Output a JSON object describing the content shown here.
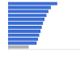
{
  "chart_data": {
    "type": "bar",
    "orientation": "horizontal",
    "categories": [
      null,
      null,
      null,
      null,
      null,
      null,
      null,
      null,
      null,
      null,
      null,
      null
    ],
    "values": [
      10.0,
      8.7,
      8.2,
      7.8,
      7.4,
      7.1,
      6.85,
      6.6,
      6.35,
      6.1,
      5.8,
      4.2
    ],
    "colors": [
      "#3d6fd4",
      "#3d6fd4",
      "#3d6fd4",
      "#3d6fd4",
      "#3d6fd4",
      "#3d6fd4",
      "#3d6fd4",
      "#3d6fd4",
      "#3d6fd4",
      "#3d6fd4",
      "#3d6fd4",
      "#b0b0b0"
    ],
    "xlim": [
      0,
      14.5
    ],
    "tick_labels": false,
    "grid": false
  }
}
